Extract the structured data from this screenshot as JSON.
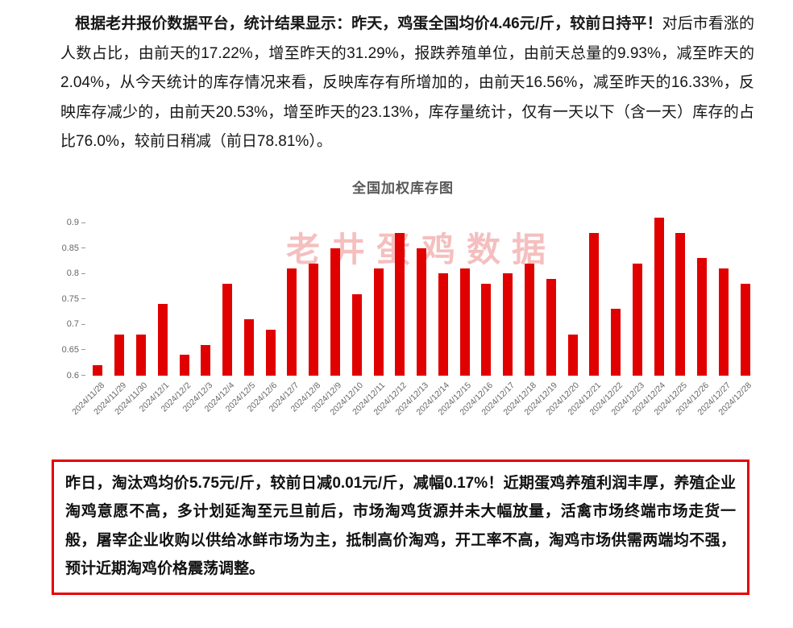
{
  "report": {
    "intro_bold": "根据老井报价数据平台，统计结果显示：昨天，鸡蛋全国均价4.46元/斤，较前日持平！",
    "intro_rest": "对后市看涨的人数占比，由前天的17.22%，增至昨天的31.29%，报跌养殖单位，由前天总量的9.93%，减至昨天的2.04%，从今天统计的库存情况来看，反映库存有所增加的，由前天16.56%，减至昨天的16.33%，反映库存减少的，由前天20.53%，增至昨天的23.13%，库存量统计，仅有一天以下（含一天）库存的占比76.0%，较前日稍减（前日78.81%）。"
  },
  "chart_data": {
    "type": "bar",
    "title": "全国加权库存图",
    "watermark": "老井蛋鸡数据",
    "categories": [
      "2024/11/28",
      "2024/11/29",
      "2024/11/30",
      "2024/12/1",
      "2024/12/2",
      "2024/12/3",
      "2024/12/4",
      "2024/12/5",
      "2024/12/6",
      "2024/12/7",
      "2024/12/8",
      "2024/12/9",
      "2024/12/10",
      "2024/12/11",
      "2024/12/12",
      "2024/12/13",
      "2024/12/14",
      "2024/12/15",
      "2024/12/16",
      "2024/12/17",
      "2024/12/18",
      "2024/12/19",
      "2024/12/20",
      "2024/12/21",
      "2024/12/22",
      "2024/12/23",
      "2024/12/24",
      "2024/12/25",
      "2024/12/26",
      "2024/12/27",
      "2024/12/28"
    ],
    "values": [
      0.62,
      0.68,
      0.68,
      0.74,
      0.64,
      0.66,
      0.78,
      0.71,
      0.69,
      0.81,
      0.82,
      0.85,
      0.76,
      0.81,
      0.88,
      0.85,
      0.8,
      0.81,
      0.78,
      0.8,
      0.82,
      0.79,
      0.68,
      0.88,
      0.73,
      0.82,
      0.91,
      0.88,
      0.83,
      0.81,
      0.78
    ],
    "ylim": [
      0.6,
      0.92
    ],
    "ytick_labels": [
      "0.6",
      "0.65",
      "0.7",
      "0.75",
      "0.8",
      "0.85",
      "0.9"
    ],
    "xlabel": "",
    "ylabel": "",
    "grid": false,
    "legend": false,
    "bar_color": "#e00000",
    "watermark_color": "rgba(226,72,72,0.35)"
  },
  "summary_box": {
    "text": "昨日，淘汰鸡均价5.75元/斤，较前日减0.01元/斤，减幅0.17%！近期蛋鸡养殖利润丰厚，养殖企业淘鸡意愿不高，多计划延淘至元旦前后，市场淘鸡货源并未大幅放量，活禽市场终端市场走货一般，屠宰企业收购以供给冰鲜市场为主，抵制高价淘鸡，开工率不高，淘鸡市场供需两端均不强，预计近期淘鸡价格震荡调整。",
    "border_color": "#e60000"
  }
}
